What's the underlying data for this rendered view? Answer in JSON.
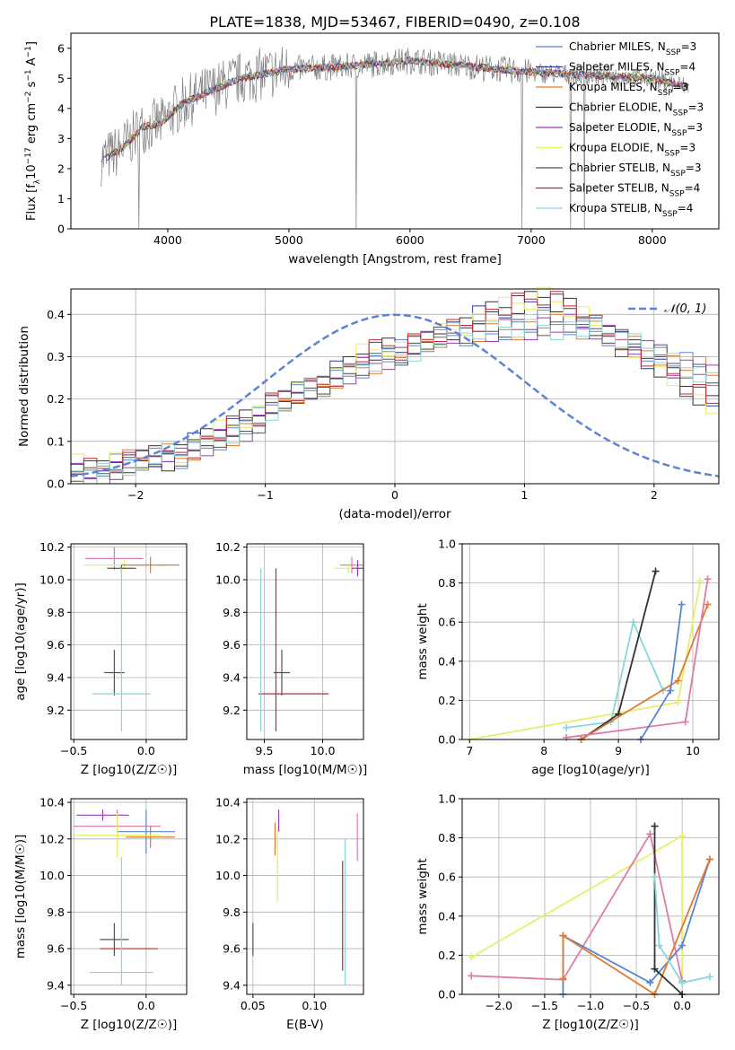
{
  "figure_title": "PLATE=1838, MJD=53467, FIBERID=0490, z=0.108",
  "models": [
    {
      "name": "Chabrier MILES, N_SSP=3",
      "base": "Chabrier MILES, N",
      "sub": "SSP",
      "tail": "=3",
      "color": "#5b84d8"
    },
    {
      "name": "Salpeter MILES, N_SSP=4",
      "base": "Salpeter MILES, N",
      "sub": "SSP",
      "tail": "=4",
      "color": "#2c3e91"
    },
    {
      "name": "Kroupa MILES, N_SSP=3",
      "base": "Kroupa MILES, N",
      "sub": "SSP",
      "tail": "=3",
      "color": "#e07a2c"
    },
    {
      "name": "Chabrier ELODIE, N_SSP=3",
      "base": "Chabrier ELODIE, N",
      "sub": "SSP",
      "tail": "=3",
      "color": "#333333"
    },
    {
      "name": "Salpeter ELODIE, N_SSP=3",
      "base": "Salpeter ELODIE, N",
      "sub": "SSP",
      "tail": "=3",
      "color": "#9a3cb8"
    },
    {
      "name": "Kroupa ELODIE, N_SSP=3",
      "base": "Kroupa ELODIE, N",
      "sub": "SSP",
      "tail": "=3",
      "color": "#e6ef6b"
    },
    {
      "name": "Chabrier STELIB, N_SSP=3",
      "base": "Chabrier STELIB, N",
      "sub": "SSP",
      "tail": "=3",
      "color": "#555555"
    },
    {
      "name": "Salpeter STELIB, N_SSP=4",
      "base": "Salpeter STELIB, N",
      "sub": "SSP",
      "tail": "=4",
      "color": "#c0282d"
    },
    {
      "name": "Kroupa STELIB, N_SSP=4",
      "base": "Kroupa STELIB, N",
      "sub": "SSP",
      "tail": "=4",
      "color": "#86d6dc"
    }
  ],
  "chart_data": [
    {
      "id": "spectrum",
      "type": "line",
      "xlabel": "wavelength [Angstrom, rest frame]",
      "ylabel": "Flux [f_λ 10^-17 erg cm^-2 s^-1 A^-1]",
      "xlim": [
        3200,
        8550
      ],
      "ylim": [
        0,
        6.5
      ],
      "xticks": [
        4000,
        5000,
        6000,
        7000,
        8000
      ],
      "yticks": [
        0,
        1,
        2,
        3,
        4,
        5,
        6
      ],
      "data_points": [
        [
          3450,
          2.3
        ],
        [
          3600,
          2.6
        ],
        [
          3800,
          3.4
        ],
        [
          3950,
          3.5
        ],
        [
          4100,
          4.1
        ],
        [
          4300,
          4.5
        ],
        [
          4600,
          5.0
        ],
        [
          5000,
          5.3
        ],
        [
          5500,
          5.4
        ],
        [
          6000,
          5.6
        ],
        [
          6500,
          5.4
        ],
        [
          7000,
          5.2
        ],
        [
          7500,
          5.1
        ],
        [
          8000,
          5.0
        ],
        [
          8300,
          4.7
        ]
      ],
      "data_line_color": "#808080",
      "model_line_color": "#86d6dc",
      "grid": false,
      "legend_position": "top-right"
    },
    {
      "id": "residual-histogram",
      "type": "bar",
      "xlabel": "(data-model)/error",
      "ylabel": "Normed distribution",
      "xlim": [
        -2.5,
        2.5
      ],
      "ylim": [
        0,
        0.46
      ],
      "xticks": [
        -2,
        -1,
        0,
        1,
        2
      ],
      "yticks": [
        0.0,
        0.1,
        0.2,
        0.3,
        0.4
      ],
      "bin_width": 0.1,
      "bin_start": -2.5,
      "series": [
        {
          "values": [
            0.03,
            0.02,
            0.03,
            0.04,
            0.05,
            0.05,
            0.06,
            0.07,
            0.06,
            0.08,
            0.09,
            0.11,
            0.12,
            0.13,
            0.15,
            0.18,
            0.19,
            0.21,
            0.22,
            0.23,
            0.25,
            0.26,
            0.28,
            0.29,
            0.3,
            0.31,
            0.32,
            0.33,
            0.34,
            0.35,
            0.35,
            0.36,
            0.36,
            0.37,
            0.37,
            0.37,
            0.38,
            0.37,
            0.37,
            0.36,
            0.36,
            0.35,
            0.34,
            0.33,
            0.32,
            0.31,
            0.29,
            0.28,
            0.27,
            0.25
          ]
        },
        {
          "values": [
            0.04,
            0.03,
            0.03,
            0.05,
            0.05,
            0.06,
            0.07,
            0.06,
            0.08,
            0.09,
            0.1,
            0.12,
            0.13,
            0.15,
            0.16,
            0.19,
            0.2,
            0.22,
            0.23,
            0.24,
            0.26,
            0.27,
            0.3,
            0.31,
            0.32,
            0.31,
            0.33,
            0.34,
            0.36,
            0.37,
            0.38,
            0.39,
            0.4,
            0.41,
            0.42,
            0.43,
            0.44,
            0.43,
            0.42,
            0.4,
            0.38,
            0.36,
            0.33,
            0.31,
            0.29,
            0.27,
            0.25,
            0.23,
            0.21,
            0.19
          ]
        }
      ],
      "normal_curve": {
        "label": "N(0,1)",
        "mean": 0,
        "sigma": 1,
        "color": "#5b84d8"
      },
      "grid": true,
      "legend_position": "top-right"
    },
    {
      "id": "age-vs-Z",
      "type": "scatter",
      "xlabel": "Z [log10(Z/Z☉)]",
      "ylabel": "age [log10(age/yr)]",
      "xlim": [
        -0.52,
        0.28
      ],
      "ylim": [
        9.02,
        10.22
      ],
      "xticks": [
        -0.5,
        0.0
      ],
      "yticks": [
        9.2,
        9.4,
        9.6,
        9.8,
        10.0,
        10.2
      ],
      "points": [
        {
          "x": -0.22,
          "y": 10.13,
          "xerr": 0.2,
          "yerr": 0.07,
          "color": "#e07aad"
        },
        {
          "x": -0.15,
          "y": 10.09,
          "xerr": 0.28,
          "yerr": 0.03,
          "color": "#e6ef6b"
        },
        {
          "x": 0.03,
          "y": 10.09,
          "xerr": 0.2,
          "yerr": 0.05,
          "color": "#e07a2c"
        },
        {
          "x": -0.17,
          "y": 10.07,
          "xerr": 0.1,
          "yerr": 0.02,
          "color": "#555555"
        },
        {
          "x": -0.22,
          "y": 9.43,
          "xerr": 0.07,
          "yerr": 0.14,
          "color": "#555555"
        },
        {
          "x": -0.17,
          "y": 9.3,
          "xerr": 0.2,
          "yerr": 0.0,
          "color": "#86d6dc"
        },
        {
          "x": -0.17,
          "y": 9.57,
          "xerr": 0.0,
          "yerr": 0.5,
          "color": "#86d6dc"
        }
      ],
      "grid": true
    },
    {
      "id": "age-vs-mass",
      "type": "scatter",
      "xlabel": "mass [log10(M/M☉)]",
      "ylabel": "",
      "xlim": [
        9.35,
        10.35
      ],
      "ylim": [
        9.02,
        10.22
      ],
      "xticks": [
        9.5,
        10.0
      ],
      "yticks": [
        9.2,
        9.4,
        9.6,
        9.8,
        10.0,
        10.2
      ],
      "points": [
        {
          "x": 10.25,
          "y": 10.09,
          "xerr": 0.1,
          "yerr": 0.05,
          "color": "#e07aad"
        },
        {
          "x": 10.22,
          "y": 10.07,
          "xerr": 0.12,
          "yerr": 0.03,
          "color": "#e6ef6b"
        },
        {
          "x": 10.3,
          "y": 10.07,
          "xerr": 0.05,
          "yerr": 0.05,
          "color": "#9a3cb8"
        },
        {
          "x": 9.65,
          "y": 9.43,
          "xerr": 0.07,
          "yerr": 0.14,
          "color": "#555555"
        },
        {
          "x": 9.6,
          "y": 9.57,
          "xerr": 0.0,
          "yerr": 0.5,
          "color": "#c0282d"
        },
        {
          "x": 9.75,
          "y": 9.3,
          "xerr": 0.3,
          "yerr": 0.0,
          "color": "#c0282d"
        },
        {
          "x": 9.47,
          "y": 9.57,
          "xerr": 0.0,
          "yerr": 0.5,
          "color": "#86d6dc"
        }
      ],
      "grid": true
    },
    {
      "id": "weight-vs-age",
      "type": "line",
      "xlabel": "age [log10(age/yr)]",
      "ylabel": "mass weight",
      "xlim": [
        6.9,
        10.35
      ],
      "ylim": [
        0,
        1.0
      ],
      "xticks": [
        7,
        8,
        9,
        10
      ],
      "yticks": [
        0.0,
        0.2,
        0.4,
        0.6,
        0.8,
        1.0
      ],
      "series": [
        {
          "color": "#e6ef6b",
          "x": [
            7.0,
            9.8,
            10.1
          ],
          "y": [
            0.0,
            0.19,
            0.81
          ]
        },
        {
          "color": "#86d6dc",
          "x": [
            8.3,
            8.9,
            9.2,
            9.6
          ],
          "y": [
            0.06,
            0.09,
            0.6,
            0.25
          ]
        },
        {
          "color": "#333333",
          "x": [
            8.5,
            9.0,
            9.5
          ],
          "y": [
            0.0,
            0.13,
            0.86
          ]
        },
        {
          "color": "#e07a2c",
          "x": [
            8.5,
            9.8,
            10.2
          ],
          "y": [
            0.0,
            0.3,
            0.69
          ]
        },
        {
          "color": "#e07aad",
          "x": [
            8.3,
            9.9,
            10.2
          ],
          "y": [
            0.01,
            0.09,
            0.82
          ]
        },
        {
          "color": "#5b84d8",
          "x": [
            9.3,
            9.7,
            9.85
          ],
          "y": [
            0.0,
            0.25,
            0.69
          ]
        }
      ],
      "grid": true
    },
    {
      "id": "mass-vs-Z",
      "type": "scatter",
      "xlabel": "Z [log10(Z/Z☉)]",
      "ylabel": "mass [log10(M/M☉)]",
      "xlim": [
        -0.52,
        0.28
      ],
      "ylim": [
        9.35,
        10.42
      ],
      "xticks": [
        -0.5,
        0.0
      ],
      "yticks": [
        9.4,
        9.6,
        9.8,
        10.0,
        10.2,
        10.4
      ],
      "points": [
        {
          "x": -0.3,
          "y": 10.33,
          "xerr": 0.18,
          "yerr": 0.03,
          "color": "#9a3cb8"
        },
        {
          "x": -0.2,
          "y": 10.27,
          "xerr": 0.3,
          "yerr": 0.09,
          "color": "#e07aad"
        },
        {
          "x": 0.0,
          "y": 10.24,
          "xerr": 0.2,
          "yerr": 0.12,
          "color": "#5b84d8"
        },
        {
          "x": 0.03,
          "y": 10.21,
          "xerr": 0.17,
          "yerr": 0.06,
          "color": "#e07a2c"
        },
        {
          "x": -0.2,
          "y": 10.22,
          "xerr": 0.3,
          "yerr": 0.12,
          "color": "#e6ef6b"
        },
        {
          "x": -0.22,
          "y": 9.65,
          "xerr": 0.1,
          "yerr": 0.09,
          "color": "#555555"
        },
        {
          "x": -0.12,
          "y": 9.6,
          "xerr": 0.2,
          "yerr": 0.0,
          "color": "#c0282d"
        },
        {
          "x": -0.17,
          "y": 9.47,
          "xerr": 0.22,
          "yerr": 0.0,
          "color": "#86d6dc"
        },
        {
          "x": -0.17,
          "y": 9.75,
          "xerr": 0.0,
          "yerr": 0.35,
          "color": "#86d6dc"
        }
      ],
      "grid": true
    },
    {
      "id": "mass-vs-EBV",
      "type": "scatter",
      "xlabel": "E(B-V)",
      "ylabel": "",
      "xlim": [
        0.045,
        0.14
      ],
      "ylim": [
        9.35,
        10.42
      ],
      "xticks": [
        0.05,
        0.1
      ],
      "yticks": [
        9.4,
        9.6,
        9.8,
        10.0,
        10.2,
        10.4
      ],
      "points": [
        {
          "x": 0.05,
          "y": 9.65,
          "xerr": 0.0,
          "yerr": 0.09,
          "color": "#555555"
        },
        {
          "x": 0.068,
          "y": 10.2,
          "xerr": 0.0,
          "yerr": 0.09,
          "color": "#e07a2c"
        },
        {
          "x": 0.07,
          "y": 10.05,
          "xerr": 0.0,
          "yerr": 0.2,
          "color": "#e6ef6b"
        },
        {
          "x": 0.071,
          "y": 10.3,
          "xerr": 0.0,
          "yerr": 0.06,
          "color": "#9a3cb8"
        },
        {
          "x": 0.123,
          "y": 9.78,
          "xerr": 0.0,
          "yerr": 0.3,
          "color": "#c0282d"
        },
        {
          "x": 0.125,
          "y": 9.8,
          "xerr": 0.0,
          "yerr": 0.4,
          "color": "#86d6dc"
        },
        {
          "x": 0.135,
          "y": 10.21,
          "xerr": 0.0,
          "yerr": 0.13,
          "color": "#e07aad"
        }
      ],
      "grid": true
    },
    {
      "id": "weight-vs-Z",
      "type": "line",
      "xlabel": "Z [log10(Z/Z☉)]",
      "ylabel": "mass weight",
      "xlim": [
        -2.4,
        0.4
      ],
      "ylim": [
        0,
        1.0
      ],
      "xticks": [
        -2.0,
        -1.5,
        -1.0,
        -0.5,
        0.0
      ],
      "yticks": [
        0.0,
        0.2,
        0.4,
        0.6,
        0.8,
        1.0
      ],
      "series": [
        {
          "color": "#e6ef6b",
          "x": [
            -2.3,
            0.0,
            0.0
          ],
          "y": [
            0.19,
            0.81,
            0.06
          ]
        },
        {
          "color": "#e07aad",
          "x": [
            -2.3,
            -1.3,
            -0.35,
            0.0
          ],
          "y": [
            0.095,
            0.075,
            0.82,
            0.07
          ]
        },
        {
          "color": "#5b84d8",
          "x": [
            -1.3,
            -1.3,
            -0.35,
            0.0,
            0.3
          ],
          "y": [
            0.0,
            0.3,
            0.06,
            0.25,
            0.69
          ]
        },
        {
          "color": "#e07a2c",
          "x": [
            -1.3,
            -1.3,
            -0.3,
            0.3
          ],
          "y": [
            0.08,
            0.3,
            0.0,
            0.69
          ]
        },
        {
          "color": "#333333",
          "x": [
            -0.3,
            -0.3,
            0.0
          ],
          "y": [
            0.86,
            0.13,
            0.0
          ]
        },
        {
          "color": "#86d6dc",
          "x": [
            -0.3,
            -0.25,
            0.0,
            0.3
          ],
          "y": [
            0.6,
            0.25,
            0.06,
            0.09
          ]
        }
      ],
      "grid": true
    }
  ]
}
